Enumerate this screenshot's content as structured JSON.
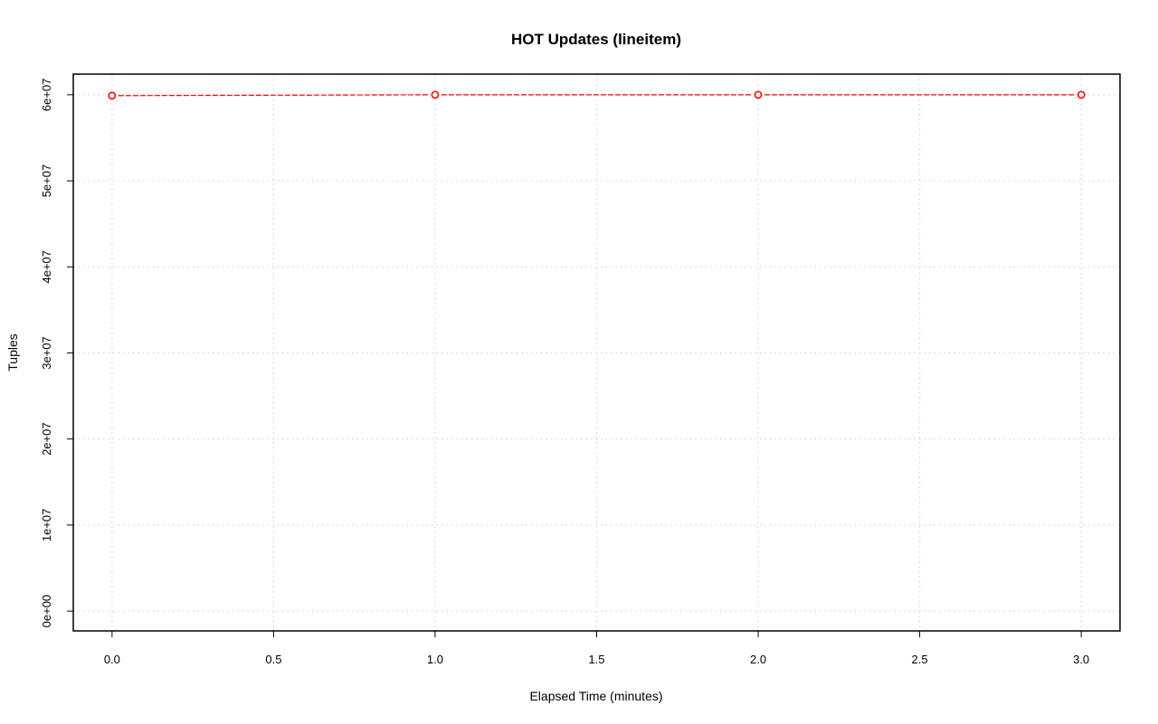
{
  "chart_data": {
    "type": "line",
    "title": "HOT Updates (lineitem)",
    "xlabel": "Elapsed Time (minutes)",
    "ylabel": "Tuples",
    "x": [
      0,
      1,
      2,
      3
    ],
    "series": [
      {
        "values": [
          59900000,
          60000000,
          60000000,
          60000000
        ],
        "color": "#ff0000",
        "marker": "open-circle",
        "line_style": "dashed"
      }
    ],
    "xlim": [
      -0.12,
      3.12
    ],
    "ylim": [
      -2300000,
      62400000
    ],
    "xticks": [
      0,
      0.5,
      1,
      1.5,
      2,
      2.5,
      3
    ],
    "xtick_labels": [
      "0.0",
      "0.5",
      "1.0",
      "1.5",
      "2.0",
      "2.5",
      "3.0"
    ],
    "yticks": [
      0,
      10000000,
      20000000,
      30000000,
      40000000,
      50000000,
      60000000
    ],
    "ytick_labels": [
      "0e+00",
      "1e+07",
      "2e+07",
      "3e+07",
      "4e+07",
      "5e+07",
      "6e+07"
    ],
    "grid": true,
    "grid_color": "#d3d3d3"
  }
}
